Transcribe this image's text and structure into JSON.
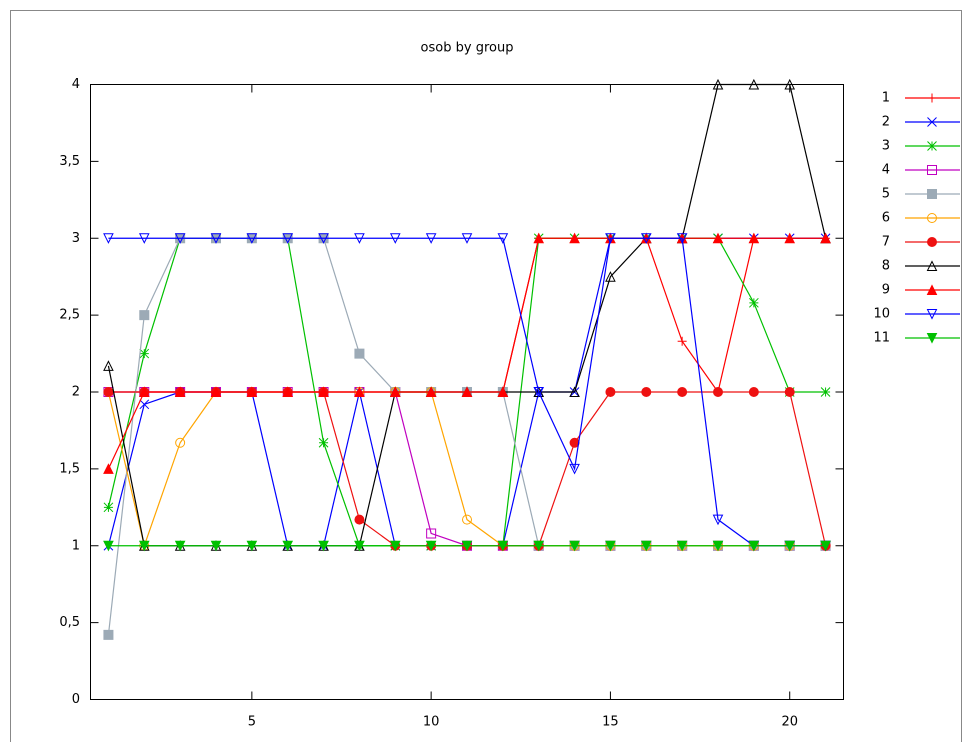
{
  "chart_data": {
    "type": "line",
    "title": "osob by group",
    "x": [
      1,
      2,
      3,
      4,
      5,
      6,
      7,
      8,
      9,
      10,
      11,
      12,
      13,
      14,
      15,
      16,
      17,
      18,
      19,
      20,
      21
    ],
    "xlim": [
      0.5,
      21.5
    ],
    "xticks": [
      5,
      10,
      15,
      20
    ],
    "ylim": [
      0,
      4
    ],
    "yticks": [
      0,
      {
        "value": 0.5,
        "label": "0,5"
      },
      1,
      {
        "value": 1.5,
        "label": "1,5"
      },
      2,
      {
        "value": 2.5,
        "label": "2,5"
      },
      3,
      {
        "value": 3.5,
        "label": "3,5"
      },
      4
    ],
    "legend": "right",
    "series": [
      {
        "name": "1",
        "color": "#ff0000",
        "marker": "plus",
        "values": [
          2,
          2,
          2,
          2,
          2,
          2,
          2,
          2,
          2,
          2,
          2,
          2,
          3,
          3,
          3,
          3,
          2.33,
          2,
          3,
          3,
          3
        ]
      },
      {
        "name": "2",
        "color": "#0000ff",
        "marker": "cross",
        "values": [
          1,
          1.92,
          2,
          2,
          2,
          1,
          1,
          2,
          1,
          1,
          1,
          1,
          2,
          2,
          3,
          3,
          3,
          3,
          3,
          3,
          3
        ]
      },
      {
        "name": "3",
        "color": "#00c000",
        "marker": "star",
        "values": [
          1.25,
          2.25,
          3,
          3,
          3,
          3,
          1.67,
          1,
          1,
          1,
          1,
          1,
          3,
          3,
          3,
          3,
          3,
          3,
          2.58,
          2,
          2
        ]
      },
      {
        "name": "4",
        "color": "#c000c0",
        "marker": "square-open",
        "values": [
          2,
          2,
          2,
          2,
          2,
          2,
          2,
          2,
          2,
          1.08,
          1,
          1,
          1,
          1,
          1,
          1,
          1,
          1,
          1,
          1,
          1
        ]
      },
      {
        "name": "5",
        "color": "#9caab6",
        "marker": "square",
        "values": [
          0.42,
          2.5,
          3,
          3,
          3,
          3,
          3,
          2.25,
          2,
          2,
          2,
          2,
          1,
          1,
          1,
          1,
          1,
          1,
          1,
          1,
          1
        ]
      },
      {
        "name": "6",
        "color": "#ffa500",
        "marker": "circle-open",
        "values": [
          2,
          1,
          1.67,
          2,
          2,
          2,
          2,
          2,
          2,
          2,
          1.17,
          1,
          1,
          1,
          1,
          1,
          1,
          1,
          1,
          1,
          1
        ]
      },
      {
        "name": "7",
        "color": "#ee1111",
        "marker": "circle",
        "values": [
          2,
          2,
          2,
          2,
          2,
          2,
          2,
          1.17,
          1,
          1,
          1,
          1,
          1,
          1.67,
          2,
          2,
          2,
          2,
          2,
          2,
          1
        ]
      },
      {
        "name": "8",
        "color": "#000000",
        "marker": "triangle-open",
        "values": [
          2.17,
          1,
          1,
          1,
          1,
          1,
          1,
          1,
          2,
          2,
          2,
          2,
          2,
          2,
          2.75,
          3,
          3,
          4,
          4,
          4,
          3
        ]
      },
      {
        "name": "9",
        "color": "#ff0000",
        "marker": "triangle",
        "values": [
          1.5,
          2,
          2,
          2,
          2,
          2,
          2,
          2,
          2,
          2,
          2,
          2,
          3,
          3,
          3,
          3,
          3,
          3,
          3,
          3,
          3
        ]
      },
      {
        "name": "10",
        "color": "#0000ff",
        "marker": "triangle-down-open",
        "values": [
          3,
          3,
          3,
          3,
          3,
          3,
          3,
          3,
          3,
          3,
          3,
          3,
          2,
          1.5,
          3,
          3,
          3,
          1.17,
          1,
          1,
          1
        ]
      },
      {
        "name": "11",
        "color": "#00c000",
        "marker": "triangle-down",
        "values": [
          1,
          1,
          1,
          1,
          1,
          1,
          1,
          1,
          1,
          1,
          1,
          1,
          1,
          1,
          1,
          1,
          1,
          1,
          1,
          1,
          1
        ]
      }
    ]
  }
}
